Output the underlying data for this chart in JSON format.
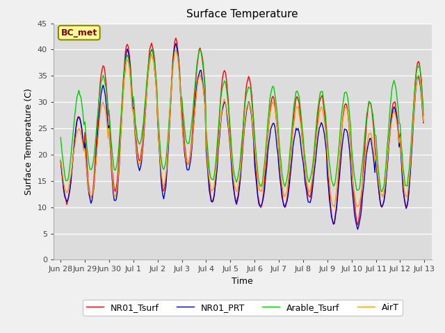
{
  "title": "Surface Temperature",
  "xlabel": "Time",
  "ylabel": "Surface Temperature (C)",
  "ylim": [
    0,
    45
  ],
  "bg_color": "#f0f0f0",
  "plot_bg_color": "#dcdcdc",
  "annotation_text": "BC_met",
  "annotation_box_color": "#ffff99",
  "annotation_text_color": "#8b0000",
  "legend_labels": [
    "NR01_Tsurf",
    "NR01_PRT",
    "Arable_Tsurf",
    "AirT"
  ],
  "line_colors": [
    "#ff0000",
    "#0000cc",
    "#00cc00",
    "#ff9900"
  ],
  "tick_labels": [
    "Jun 28",
    "Jun 29",
    "Jun 30",
    "Jul 1",
    "Jul 2",
    "Jul 3",
    "Jul 4",
    "Jul 5",
    "Jul 6",
    "Jul 7",
    "Jul 8",
    "Jul 9",
    "Jul 10",
    "Jul 11",
    "Jul 12",
    "Jul 13"
  ],
  "tick_positions": [
    0,
    1,
    2,
    3,
    4,
    5,
    6,
    7,
    8,
    9,
    10,
    11,
    12,
    13,
    14,
    15
  ],
  "yticks": [
    0,
    5,
    10,
    15,
    20,
    25,
    30,
    35,
    40,
    45
  ],
  "grid_color": "#ffffff",
  "title_fontsize": 11,
  "label_fontsize": 9,
  "tick_fontsize": 8,
  "legend_fontsize": 9,
  "daily_mins_r": [
    11,
    12,
    13,
    19,
    13,
    18,
    11,
    11,
    10,
    10,
    12,
    7,
    7,
    10,
    10
  ],
  "daily_maxs_r": [
    27,
    37,
    41,
    41,
    42,
    40,
    36,
    35,
    31,
    31,
    31,
    30,
    30,
    30,
    38
  ],
  "daily_mins_b": [
    11,
    11,
    11,
    17,
    12,
    17,
    11,
    11,
    10,
    10,
    11,
    7,
    6,
    10,
    10
  ],
  "daily_maxs_b": [
    27,
    33,
    40,
    40,
    41,
    36,
    30,
    30,
    26,
    25,
    26,
    25,
    23,
    29,
    35
  ],
  "daily_mins_g": [
    15,
    17,
    17,
    22,
    17,
    22,
    15,
    15,
    14,
    14,
    15,
    14,
    13,
    13,
    14
  ],
  "daily_maxs_g": [
    32,
    35,
    39,
    40,
    40,
    40,
    34,
    33,
    33,
    32,
    32,
    32,
    30,
    34,
    37
  ],
  "daily_mins_o": [
    13,
    12,
    12,
    18,
    14,
    18,
    13,
    13,
    13,
    12,
    13,
    10,
    10,
    12,
    12
  ],
  "daily_maxs_o": [
    25,
    30,
    38,
    39,
    40,
    35,
    30,
    30,
    30,
    29,
    29,
    29,
    24,
    28,
    35
  ]
}
